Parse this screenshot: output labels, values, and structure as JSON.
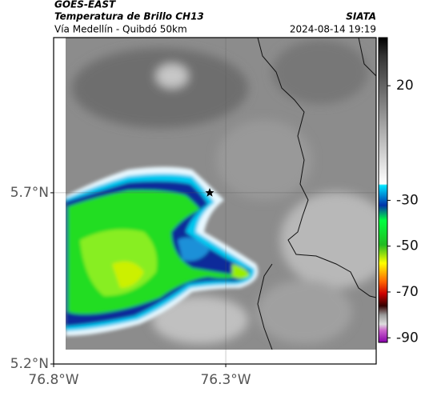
{
  "header": {
    "title": "GOES-EAST",
    "subtitle": "Temperatura de Brillo CH13",
    "location": "Vía Medellín - Quibdó 50km",
    "source": "SIATA",
    "datetime": "2024-08-14 19:19"
  },
  "map": {
    "xlim": [
      -76.8,
      -75.863
    ],
    "ylim": [
      5.2,
      6.153
    ],
    "xticks": [
      {
        "value": -76.8,
        "label": "76.8°W"
      },
      {
        "value": -76.3,
        "label": "76.3°W"
      }
    ],
    "yticks": [
      {
        "value": 5.7,
        "label": "5.7°N"
      },
      {
        "value": 5.2,
        "label": "5.2°N"
      }
    ],
    "grid": true
  },
  "colorbar": {
    "lim": [
      41,
      -92
    ],
    "ticks": [
      20,
      -30,
      -50,
      -70,
      -90
    ]
  }
}
